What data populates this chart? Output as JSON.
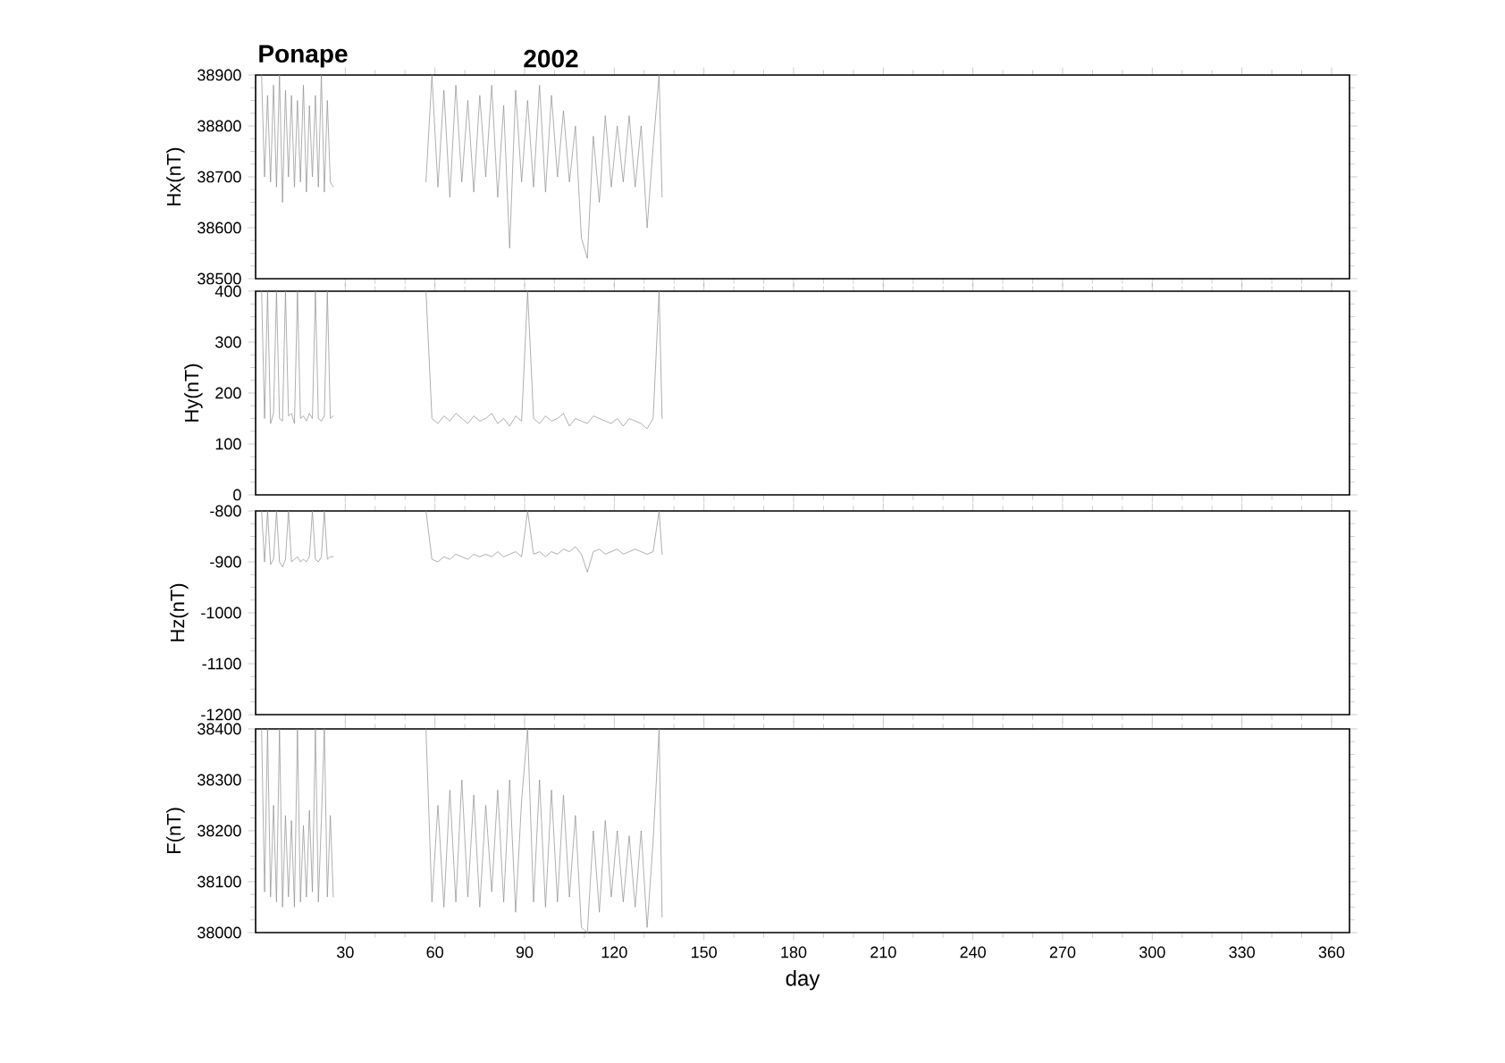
{
  "chart_data": [
    {
      "type": "line",
      "title": "Ponape",
      "subtitle": "2002",
      "ylabel": "Hx(nT)",
      "xlim": [
        0,
        366
      ],
      "xticks": [
        30,
        60,
        90,
        120,
        150,
        180,
        210,
        240,
        270,
        300,
        330,
        360
      ],
      "ylim": [
        38500,
        38900
      ],
      "yticks": [
        38500,
        38600,
        38700,
        38800,
        38900
      ],
      "tick_labels": "y",
      "x": [
        2,
        3,
        4,
        5,
        6,
        7,
        8,
        9,
        10,
        11,
        12,
        13,
        14,
        15,
        16,
        17,
        18,
        19,
        20,
        21,
        22,
        23,
        24,
        25,
        26,
        40,
        57,
        59,
        61,
        63,
        65,
        67,
        69,
        71,
        73,
        75,
        77,
        79,
        81,
        83,
        85,
        87,
        89,
        91,
        93,
        95,
        97,
        99,
        101,
        103,
        105,
        107,
        109,
        111,
        113,
        115,
        117,
        119,
        121,
        123,
        125,
        127,
        129,
        131,
        133,
        135,
        136
      ],
      "series": [
        {
          "color": "#8c8c8c",
          "values": [
            38900,
            38700,
            38860,
            38690,
            38880,
            38680,
            38900,
            38650,
            38870,
            38700,
            38860,
            38680,
            38850,
            38690,
            38880,
            38670,
            38840,
            38700,
            38860,
            38680,
            38900,
            38670,
            38850,
            38690,
            38680,
            null,
            38690,
            38900,
            38680,
            38870,
            38660,
            38880,
            38690,
            38850,
            38670,
            38860,
            38700,
            38880,
            38660,
            38840,
            38560,
            38870,
            38690,
            38850,
            38680,
            38880,
            38670,
            38860,
            38700,
            38830,
            38690,
            38800,
            38580,
            38540,
            38780,
            38650,
            38820,
            38680,
            38800,
            38690,
            38820,
            38680,
            38800,
            38600,
            38760,
            38900,
            38660
          ]
        }
      ]
    },
    {
      "type": "line",
      "ylabel": "Hy(nT)",
      "xlim": [
        0,
        366
      ],
      "xticks": [
        30,
        60,
        90,
        120,
        150,
        180,
        210,
        240,
        270,
        300,
        330,
        360
      ],
      "ylim": [
        0,
        400
      ],
      "yticks": [
        0,
        100,
        200,
        300,
        400
      ],
      "tick_labels": "y",
      "x": [
        2,
        3,
        4,
        5,
        6,
        7,
        8,
        9,
        10,
        11,
        12,
        13,
        14,
        15,
        16,
        17,
        18,
        19,
        20,
        21,
        22,
        23,
        24,
        25,
        26,
        40,
        57,
        59,
        61,
        63,
        65,
        67,
        69,
        71,
        73,
        75,
        77,
        79,
        81,
        83,
        85,
        87,
        89,
        91,
        93,
        95,
        97,
        99,
        101,
        103,
        105,
        107,
        109,
        111,
        113,
        115,
        117,
        119,
        121,
        123,
        125,
        127,
        129,
        131,
        133,
        135,
        136
      ],
      "series": [
        {
          "color": "#8c8c8c",
          "values": [
            400,
            150,
            400,
            140,
            160,
            400,
            150,
            145,
            400,
            155,
            160,
            140,
            400,
            150,
            155,
            145,
            160,
            150,
            400,
            150,
            145,
            155,
            400,
            150,
            155,
            null,
            400,
            150,
            140,
            155,
            145,
            160,
            150,
            140,
            155,
            145,
            150,
            160,
            140,
            150,
            135,
            155,
            145,
            400,
            150,
            140,
            155,
            145,
            150,
            160,
            135,
            150,
            145,
            140,
            155,
            150,
            145,
            140,
            150,
            135,
            150,
            145,
            140,
            130,
            150,
            400,
            150
          ]
        }
      ]
    },
    {
      "type": "line",
      "ylabel": "Hz(nT)",
      "xlim": [
        0,
        366
      ],
      "xticks": [
        30,
        60,
        90,
        120,
        150,
        180,
        210,
        240,
        270,
        300,
        330,
        360
      ],
      "ylim": [
        -1200,
        -800
      ],
      "yticks": [
        -1200,
        -1100,
        -1000,
        -900,
        -800
      ],
      "tick_labels": "y",
      "x": [
        2,
        3,
        4,
        5,
        6,
        7,
        8,
        9,
        10,
        11,
        12,
        13,
        14,
        15,
        16,
        17,
        18,
        19,
        20,
        21,
        22,
        23,
        24,
        25,
        26,
        40,
        57,
        59,
        61,
        63,
        65,
        67,
        69,
        71,
        73,
        75,
        77,
        79,
        81,
        83,
        85,
        87,
        89,
        91,
        93,
        95,
        97,
        99,
        101,
        103,
        105,
        107,
        109,
        111,
        113,
        115,
        117,
        119,
        121,
        123,
        125,
        127,
        129,
        131,
        133,
        135,
        136
      ],
      "series": [
        {
          "color": "#8c8c8c",
          "values": [
            -800,
            -900,
            -800,
            -905,
            -895,
            -800,
            -900,
            -910,
            -895,
            -800,
            -900,
            -895,
            -890,
            -900,
            -895,
            -900,
            -890,
            -800,
            -895,
            -900,
            -890,
            -800,
            -895,
            -890,
            -890,
            null,
            -800,
            -895,
            -900,
            -890,
            -895,
            -885,
            -890,
            -895,
            -885,
            -890,
            -885,
            -890,
            -880,
            -890,
            -885,
            -880,
            -890,
            -800,
            -885,
            -880,
            -890,
            -880,
            -885,
            -875,
            -880,
            -870,
            -885,
            -920,
            -880,
            -875,
            -885,
            -880,
            -875,
            -885,
            -880,
            -875,
            -880,
            -885,
            -880,
            -800,
            -885
          ]
        }
      ]
    },
    {
      "type": "line",
      "ylabel": "F(nT)",
      "xlabel": "day",
      "xlim": [
        0,
        366
      ],
      "xticks": [
        30,
        60,
        90,
        120,
        150,
        180,
        210,
        240,
        270,
        300,
        330,
        360
      ],
      "ylim": [
        38000,
        38400
      ],
      "yticks": [
        38000,
        38100,
        38200,
        38300,
        38400
      ],
      "x": [
        2,
        3,
        4,
        5,
        6,
        7,
        8,
        9,
        10,
        11,
        12,
        13,
        14,
        15,
        16,
        17,
        18,
        19,
        20,
        21,
        22,
        23,
        24,
        25,
        26,
        40,
        57,
        59,
        61,
        63,
        65,
        67,
        69,
        71,
        73,
        75,
        77,
        79,
        81,
        83,
        85,
        87,
        89,
        91,
        93,
        95,
        97,
        99,
        101,
        103,
        105,
        107,
        109,
        111,
        113,
        115,
        117,
        119,
        121,
        123,
        125,
        127,
        129,
        131,
        133,
        135,
        136
      ],
      "series": [
        {
          "color": "#8c8c8c",
          "values": [
            38400,
            38080,
            38400,
            38070,
            38250,
            38060,
            38400,
            38050,
            38230,
            38070,
            38220,
            38050,
            38400,
            38060,
            38210,
            38070,
            38240,
            38080,
            38400,
            38060,
            38220,
            38400,
            38070,
            38230,
            38070,
            null,
            38400,
            38060,
            38250,
            38050,
            38280,
            38060,
            38300,
            38070,
            38270,
            38050,
            38250,
            38080,
            38280,
            38060,
            38300,
            38040,
            38260,
            38400,
            38060,
            38300,
            38050,
            38280,
            38060,
            38270,
            38070,
            38230,
            38010,
            38000,
            38200,
            38040,
            38220,
            38070,
            38200,
            38060,
            38190,
            38050,
            38200,
            38010,
            38180,
            38400,
            38030
          ]
        }
      ]
    }
  ]
}
